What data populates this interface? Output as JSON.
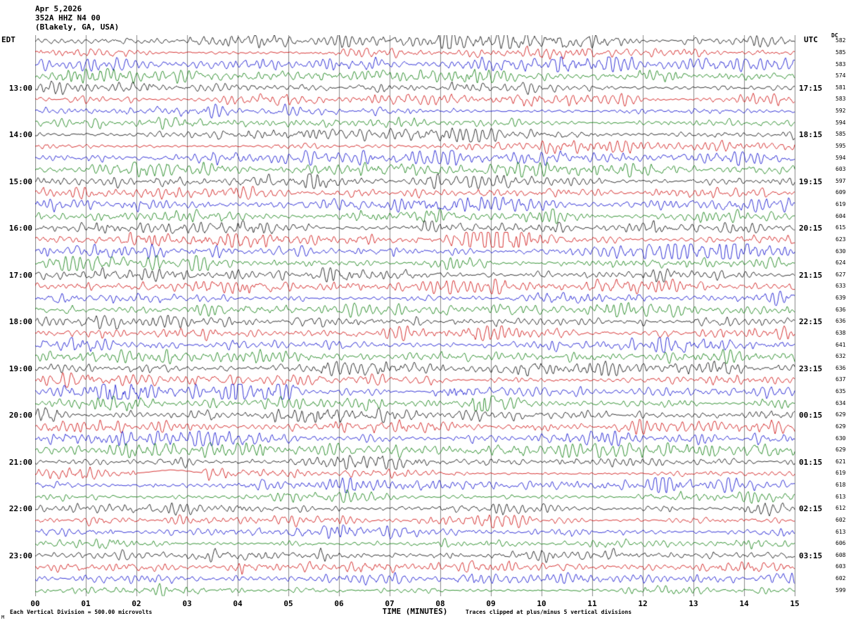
{
  "header": {
    "date": "Apr 5,2026",
    "station": "352A HHZ N4 00",
    "location": "(Blakely, GA, USA)"
  },
  "axes": {
    "left_label": "EDT",
    "right_label": "UTC",
    "dc_label": "DC",
    "x_title": "TIME (MINUTES)",
    "x_ticks": [
      "00",
      "01",
      "02",
      "03",
      "04",
      "05",
      "06",
      "07",
      "08",
      "09",
      "10",
      "11",
      "12",
      "13",
      "14",
      "15"
    ]
  },
  "footer": {
    "left": "Each Vertical Division =  500.00 microvolts",
    "right": "Traces clipped at plus/minus 5 vertical divisions",
    "corner": "M"
  },
  "chart_data": {
    "type": "line",
    "kind": "seismogram-helicorder",
    "title": "352A HHZ N4 00 (Blakely, GA, USA) Apr 5,2026",
    "xlabel": "TIME (MINUTES)",
    "x_range": [
      0,
      15
    ],
    "minutes_per_line": 15,
    "grid": true,
    "grid_color": "#8a8a8a",
    "trace_colors_cycle": [
      "#000000",
      "#cc0000",
      "#0000cc",
      "#007700"
    ],
    "vertical_division_microvolts": 500.0,
    "clip_divisions": 5,
    "rows": [
      {
        "dc": "582",
        "amp": 1.0
      },
      {
        "dc": "585",
        "amp": 1.0
      },
      {
        "dc": "583",
        "amp": 1.0
      },
      {
        "dc": "574",
        "amp": 1.05,
        "events": [
          [
            8.6,
            0.4,
            2.2
          ]
        ]
      },
      {
        "dc": "581",
        "edt": "13:00",
        "utc": "17:15",
        "amp": 1.0
      },
      {
        "dc": "583",
        "amp": 1.0
      },
      {
        "dc": "592",
        "amp": 1.0
      },
      {
        "dc": "594",
        "amp": 1.0
      },
      {
        "dc": "585",
        "edt": "14:00",
        "utc": "18:15",
        "amp": 1.0
      },
      {
        "dc": "595",
        "amp": 1.0,
        "events": [
          [
            0.5,
            0.3,
            1.8
          ]
        ]
      },
      {
        "dc": "594",
        "amp": 1.0
      },
      {
        "dc": "603",
        "amp": 1.0
      },
      {
        "dc": "597",
        "edt": "15:00",
        "utc": "19:15",
        "amp": 1.1
      },
      {
        "dc": "609",
        "amp": 1.1
      },
      {
        "dc": "619",
        "amp": 1.1,
        "events": [
          [
            0.8,
            1.2,
            2.2
          ]
        ]
      },
      {
        "dc": "604",
        "amp": 1.1
      },
      {
        "dc": "615",
        "edt": "16:00",
        "utc": "20:15",
        "amp": 1.15
      },
      {
        "dc": "623",
        "amp": 1.15,
        "events": [
          [
            9.3,
            0.5,
            2.0
          ]
        ]
      },
      {
        "dc": "630",
        "amp": 1.1
      },
      {
        "dc": "624",
        "amp": 1.1
      },
      {
        "dc": "627",
        "edt": "17:00",
        "utc": "21:15",
        "amp": 1.15
      },
      {
        "dc": "633",
        "amp": 1.15
      },
      {
        "dc": "639",
        "amp": 1.1
      },
      {
        "dc": "636",
        "amp": 1.1
      },
      {
        "dc": "636",
        "edt": "18:00",
        "utc": "22:15",
        "amp": 1.1
      },
      {
        "dc": "638",
        "amp": 1.1,
        "events": [
          [
            14.0,
            0.8,
            1.8
          ]
        ]
      },
      {
        "dc": "641",
        "amp": 1.1,
        "events": [
          [
            0.9,
            0.3,
            2.0
          ],
          [
            3.6,
            0.4,
            1.8
          ]
        ]
      },
      {
        "dc": "632",
        "amp": 1.1
      },
      {
        "dc": "636",
        "edt": "19:00",
        "utc": "23:15",
        "amp": 1.1,
        "events": [
          [
            7.8,
            0.5,
            1.8
          ]
        ]
      },
      {
        "dc": "637",
        "amp": 1.05
      },
      {
        "dc": "635",
        "amp": 1.05,
        "events": [
          [
            1.5,
            0.25,
            3.5
          ],
          [
            2.0,
            0.3,
            3.0
          ],
          [
            4.0,
            0.2,
            2.2
          ],
          [
            4.9,
            0.25,
            2.4
          ],
          [
            8.2,
            0.3,
            2.0
          ]
        ]
      },
      {
        "dc": "634",
        "amp": 1.05,
        "events": [
          [
            8.8,
            0.2,
            3.5
          ]
        ]
      },
      {
        "dc": "629",
        "edt": "20:00",
        "utc": "00:15",
        "amp": 1.0,
        "events": [
          [
            0.3,
            0.25,
            3.0
          ],
          [
            5.5,
            0.3,
            1.8
          ]
        ]
      },
      {
        "dc": "629",
        "amp": 1.0,
        "events": [
          [
            12.0,
            0.4,
            1.7
          ]
        ]
      },
      {
        "dc": "630",
        "amp": 1.0
      },
      {
        "dc": "629",
        "amp": 1.0
      },
      {
        "dc": "621",
        "edt": "21:00",
        "utc": "01:15",
        "amp": 1.0,
        "events": [
          [
            3.0,
            0.3,
            1.6
          ]
        ]
      },
      {
        "dc": "619",
        "amp": 1.0,
        "quiet": [
          2.0,
          3.3
        ],
        "drift": [
          2.7,
          0.5,
          -5
        ]
      },
      {
        "dc": "618",
        "amp": 1.0,
        "events": [
          [
            12.5,
            0.3,
            1.7
          ]
        ]
      },
      {
        "dc": "613",
        "amp": 0.95
      },
      {
        "dc": "612",
        "edt": "22:00",
        "utc": "02:15",
        "amp": 0.95
      },
      {
        "dc": "602",
        "amp": 0.95,
        "events": [
          [
            9.0,
            0.3,
            1.6
          ]
        ]
      },
      {
        "dc": "613",
        "amp": 0.95
      },
      {
        "dc": "606",
        "amp": 0.9
      },
      {
        "dc": "608",
        "edt": "23:00",
        "utc": "03:15",
        "amp": 0.9
      },
      {
        "dc": "603",
        "amp": 0.9,
        "events": [
          [
            4.0,
            0.1,
            2.5
          ]
        ]
      },
      {
        "dc": "602",
        "amp": 0.9,
        "events": [
          [
            8.6,
            0.25,
            2.5
          ]
        ]
      },
      {
        "dc": "599",
        "amp": 0.9
      }
    ]
  }
}
